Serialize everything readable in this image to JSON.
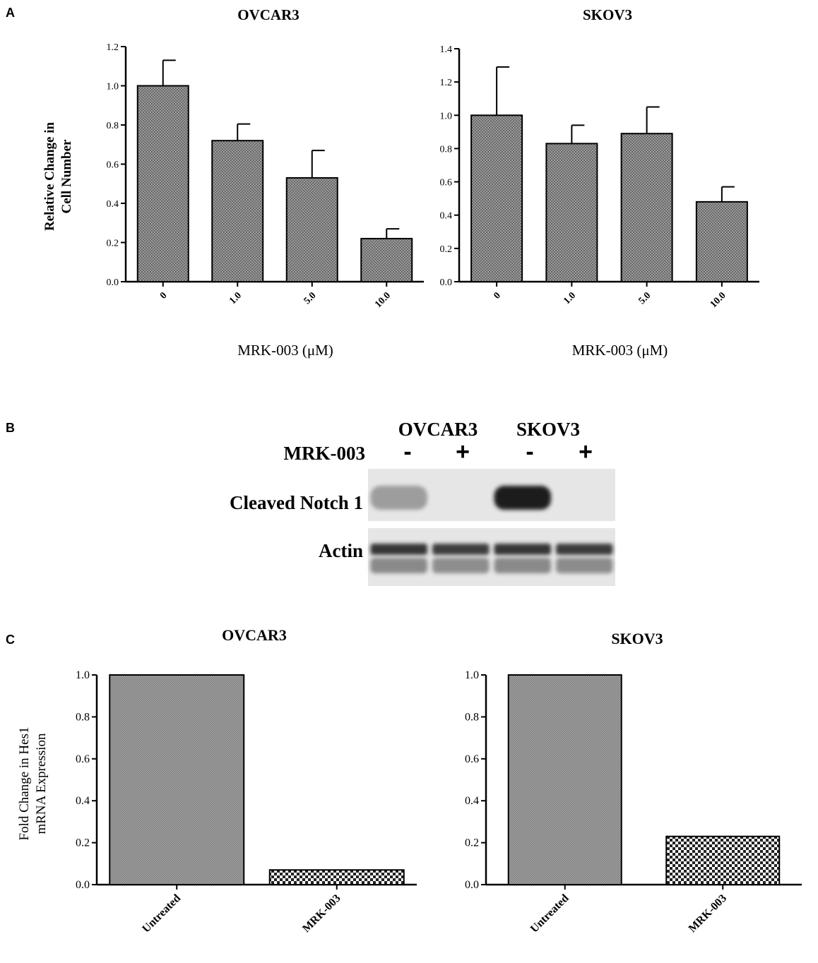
{
  "panels": {
    "a": {
      "letter": "A"
    },
    "b": {
      "letter": "B"
    },
    "c": {
      "letter": "C"
    }
  },
  "chart_data": [
    {
      "id": "a-ovcar3",
      "type": "bar",
      "title": "OVCAR3",
      "xlabel": "MRK-003 (μM)",
      "ylabel": [
        "Relative Change in",
        "Cell Number"
      ],
      "categories": [
        "0",
        "1.0",
        "5.0",
        "10.0"
      ],
      "values": [
        1.0,
        0.72,
        0.53,
        0.22
      ],
      "error": [
        0.13,
        0.085,
        0.14,
        0.05
      ],
      "ylim": [
        0,
        1.2
      ],
      "yticks": [
        "0.0",
        "0.2",
        "0.4",
        "0.6",
        "0.8",
        "1.0",
        "1.2"
      ],
      "ytick_values": [
        0,
        0.2,
        0.4,
        0.6,
        0.8,
        1.0,
        1.2
      ],
      "grid": false
    },
    {
      "id": "a-skov3",
      "type": "bar",
      "title": "SKOV3",
      "xlabel": "MRK-003 (μM)",
      "ylabel": [],
      "categories": [
        "0",
        "1.0",
        "5.0",
        "10.0"
      ],
      "values": [
        1.0,
        0.83,
        0.89,
        0.48
      ],
      "error": [
        0.29,
        0.11,
        0.16,
        0.09
      ],
      "ylim": [
        0,
        1.4
      ],
      "yticks": [
        "0.0",
        "0.2",
        "0.4",
        "0.6",
        "0.8",
        "1.0",
        "1.2",
        "1.4"
      ],
      "ytick_values": [
        0,
        0.2,
        0.4,
        0.6,
        0.8,
        1.0,
        1.2,
        1.4
      ],
      "grid": false
    },
    {
      "id": "c-ovcar3",
      "type": "bar",
      "title": "OVCAR3",
      "xlabel": "",
      "ylabel": [
        "Fold Change in Hes1",
        "mRNA Expression"
      ],
      "categories": [
        "Untreated",
        "MRK-003"
      ],
      "values": [
        1.0,
        0.07
      ],
      "ylim": [
        0,
        1.0
      ],
      "yticks": [
        "0.0",
        "0.2",
        "0.4",
        "0.6",
        "0.8",
        "1.0"
      ],
      "ytick_values": [
        0,
        0.2,
        0.4,
        0.6,
        0.8,
        1.0
      ],
      "grid": false
    },
    {
      "id": "c-skov3",
      "type": "bar",
      "title": "SKOV3",
      "xlabel": "",
      "ylabel": [],
      "categories": [
        "Untreated",
        "MRK-003"
      ],
      "values": [
        1.0,
        0.23
      ],
      "ylim": [
        0,
        1.0
      ],
      "yticks": [
        "0.0",
        "0.2",
        "0.4",
        "0.6",
        "0.8",
        "1.0"
      ],
      "ytick_values": [
        0,
        0.2,
        0.4,
        0.6,
        0.8,
        1.0
      ],
      "grid": false
    }
  ],
  "western_blot": {
    "cell_lines": [
      "OVCAR3",
      "SKOV3"
    ],
    "treatment_label": "MRK-003",
    "treatment_signs": [
      "-",
      "+",
      "-",
      "+"
    ],
    "rows": [
      {
        "label": "Cleaved Notch 1",
        "intensity": [
          0.35,
          0.0,
          0.95,
          0.0
        ]
      },
      {
        "label": "Actin",
        "intensity": [
          0.85,
          0.8,
          0.85,
          0.82
        ]
      }
    ]
  },
  "colors": {
    "bar_fill": "#8a8a8a",
    "axis": "#000000",
    "blot_background": "#e6e6e6",
    "band": "#1a1a1a"
  }
}
